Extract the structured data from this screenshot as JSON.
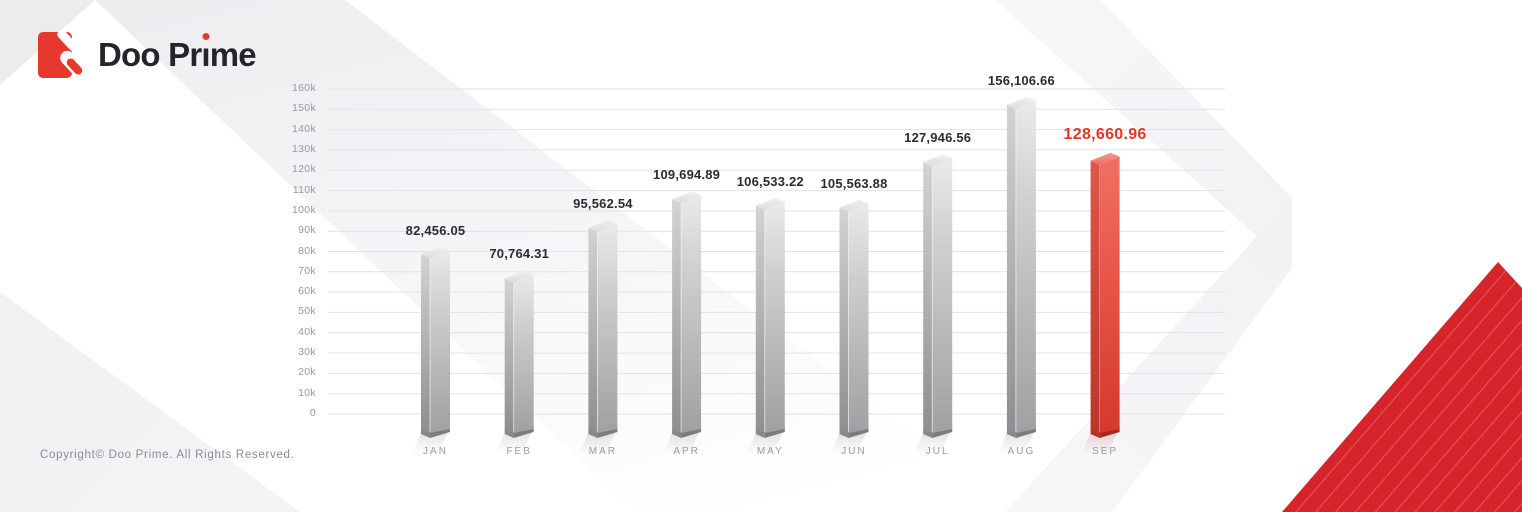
{
  "brand": {
    "name": "Doo Prime",
    "logo": {
      "before_i": "Doo Pr",
      "i": "ı",
      "after_i": "me"
    },
    "accent_color": "#e6392d",
    "text_color": "#26242a"
  },
  "footer": {
    "copyright": "Copyright© Doo Prime. All Rights Reserved."
  },
  "chart_data": {
    "type": "bar",
    "title": "",
    "categories": [
      "JAN",
      "FEB",
      "MAR",
      "APR",
      "MAY",
      "JUN",
      "JUL",
      "AUG",
      "SEP"
    ],
    "values": [
      82456.05,
      70764.31,
      95562.54,
      109694.89,
      106533.22,
      105563.88,
      127946.56,
      156106.66,
      128660.96
    ],
    "value_labels": [
      "82,456.05",
      "70,764.31",
      "95,562.54",
      "109,694.89",
      "106,533.22",
      "105,563.88",
      "127,946.56",
      "156,106.66",
      "128,660.96"
    ],
    "highlight_index": 8,
    "ylim": [
      0,
      160000
    ],
    "ytick_step": 10000,
    "ytick_labels": [
      "0",
      "10k",
      "20k",
      "30k",
      "40k",
      "50k",
      "60k",
      "70k",
      "80k",
      "90k",
      "100k",
      "110k",
      "120k",
      "130k",
      "140k",
      "150k",
      "160k"
    ],
    "grid": true,
    "legend": "none",
    "colors": {
      "bar_gray": "#b9b9bb",
      "bar_highlight": "#e8554a",
      "value_label": "#2c2b30",
      "highlight_label": "#e2362b",
      "axis_label": "#98989e",
      "gridline": "#e2e2e6",
      "corner_red": "#d7232a"
    }
  }
}
